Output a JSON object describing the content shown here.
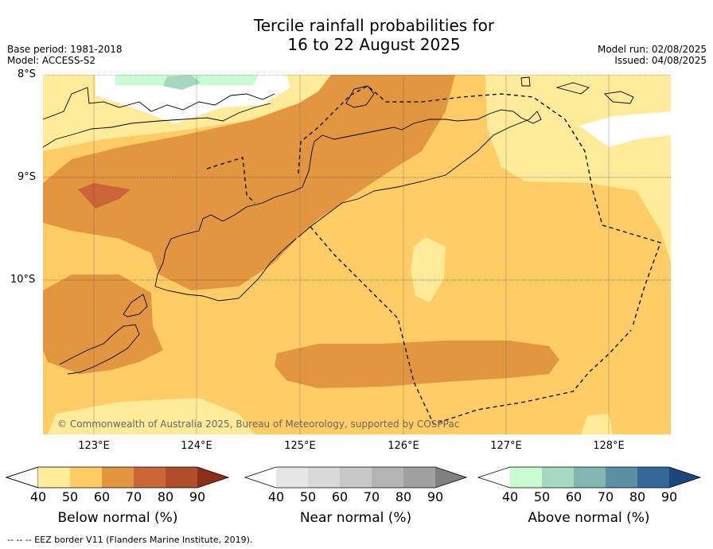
{
  "title": {
    "line1": "Tercile rainfall probabilities for",
    "line2": "16 to 22 August 2025"
  },
  "meta_left": {
    "base_period": "Base period: 1981-2018",
    "model": "Model: ACCESS-S2"
  },
  "meta_right": {
    "model_run": "Model run: 02/08/2025",
    "issued": "Issued: 04/08/2025"
  },
  "map": {
    "lat_labels": [
      "8°S",
      "9°S",
      "10°S"
    ],
    "lon_labels": [
      "123°E",
      "124°E",
      "125°E",
      "126°E",
      "127°E",
      "128°E"
    ],
    "copyright": "© Commonwealth of Australia 2025, Bureau of Meteorology, supported by COSPPac"
  },
  "colorbars": [
    {
      "title": "Below normal (%)",
      "ticks": [
        "40",
        "50",
        "60",
        "70",
        "80",
        "90"
      ],
      "colors": [
        "#ffffff",
        "#ffeb99",
        "#ffcc66",
        "#e29640",
        "#cb6436",
        "#b04d2a",
        "#8c2e18"
      ]
    },
    {
      "title": "Near normal (%)",
      "ticks": [
        "40",
        "50",
        "60",
        "70",
        "80",
        "90"
      ],
      "colors": [
        "#ffffff",
        "#e6e6e6",
        "#d9d9d9",
        "#c8c8c8",
        "#b4b4b4",
        "#a0a0a0",
        "#808080"
      ]
    },
    {
      "title": "Above normal (%)",
      "ticks": [
        "40",
        "50",
        "60",
        "70",
        "80",
        "90"
      ],
      "colors": [
        "#ffffff",
        "#c8fcd0",
        "#a4d8bf",
        "#82b6b1",
        "#5a90a2",
        "#346799",
        "#1a477f"
      ]
    }
  ],
  "footer": "--  --  -- EEZ border V11 (Flanders Marine Institute, 2019)."
}
